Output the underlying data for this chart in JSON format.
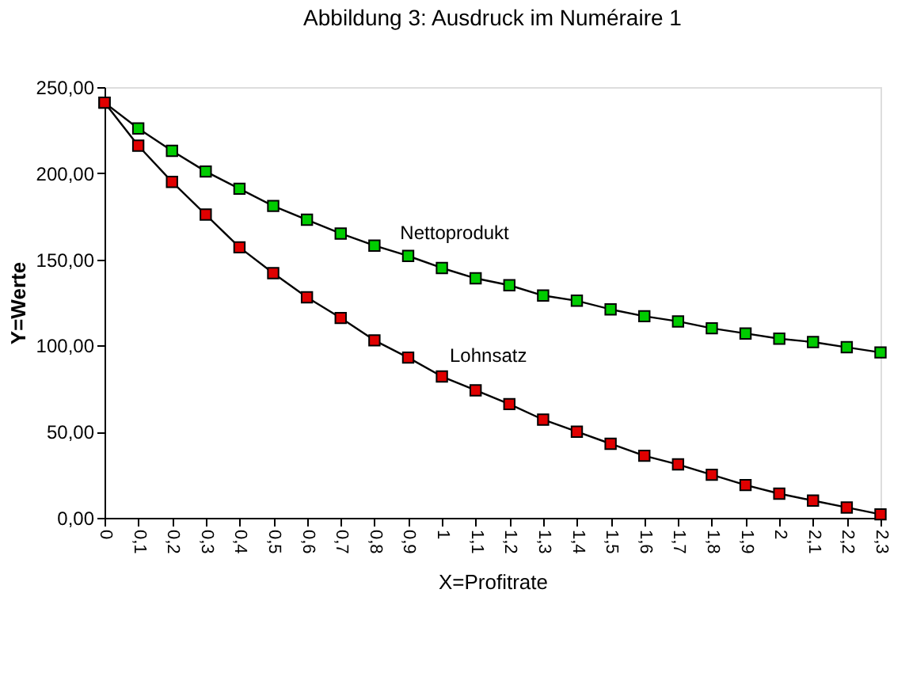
{
  "chart_data": {
    "type": "line",
    "title": "Abbildung 3: Ausdruck im Numéraire 1",
    "xlabel": "X=Profitrate",
    "ylabel": "Y=Werte",
    "categories": [
      "0",
      "0,1",
      "0,2",
      "0,3",
      "0,4",
      "0,5",
      "0,6",
      "0,7",
      "0,8",
      "0,9",
      "1",
      "1,1",
      "1,2",
      "1,3",
      "1,4",
      "1,5",
      "1,6",
      "1,7",
      "1,8",
      "1,9",
      "2",
      "2,1",
      "2,2",
      "2,3"
    ],
    "series": [
      {
        "name": "Nettoprodukt",
        "color": "#00cc00",
        "values": [
          241,
          226,
          213,
          201,
          191,
          181,
          173,
          165,
          158,
          152,
          145,
          139,
          135,
          129,
          126,
          121,
          117,
          114,
          110,
          107,
          104,
          102,
          99,
          96
        ]
      },
      {
        "name": "Lohnsatz",
        "color": "#e00000",
        "values": [
          241,
          216,
          195,
          176,
          157,
          142,
          128,
          116,
          103,
          93,
          82,
          74,
          66,
          57,
          50,
          43,
          36,
          31,
          25,
          19,
          14,
          10,
          6,
          2
        ]
      }
    ],
    "ylim": [
      0,
      250
    ],
    "yticks": [
      {
        "value": 0,
        "label": "0,00"
      },
      {
        "value": 50,
        "label": "50,00"
      },
      {
        "value": 100,
        "label": "100,00"
      },
      {
        "value": 150,
        "label": "150,00"
      },
      {
        "value": 200,
        "label": "200,00"
      },
      {
        "value": 250,
        "label": "250,00"
      }
    ],
    "grid": false,
    "marker": "square",
    "line_style": "solid"
  }
}
